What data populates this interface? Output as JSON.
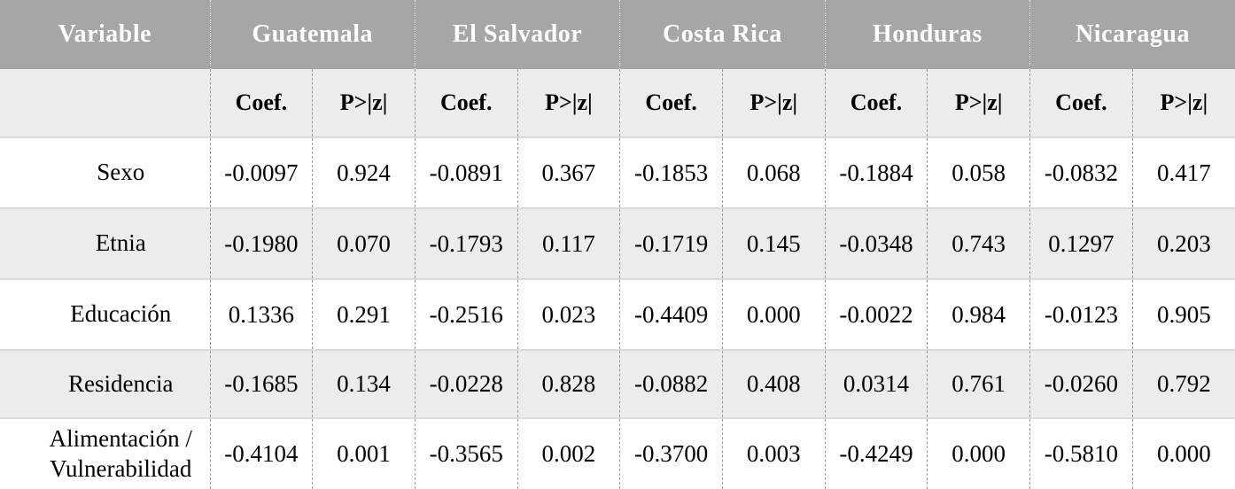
{
  "table": {
    "variable_header": "Variable",
    "countries": [
      "Guatemala",
      "El Salvador",
      "Costa Rica",
      "Honduras",
      "Nicaragua"
    ],
    "sub": {
      "coef": "Coef.",
      "p": "P>|z|"
    },
    "rows": [
      {
        "label": "Sexo",
        "values": [
          "-0.0097",
          "0.924",
          "-0.0891",
          "0.367",
          "-0.1853",
          "0.068",
          "-0.1884",
          "0.058",
          "-0.0832",
          "0.417"
        ]
      },
      {
        "label": "Etnia",
        "values": [
          "-0.1980",
          "0.070",
          "-0.1793",
          "0.117",
          "-0.1719",
          "0.145",
          "-0.0348",
          "0.743",
          "0.1297",
          "0.203"
        ]
      },
      {
        "label": "Educación",
        "values": [
          "0.1336",
          "0.291",
          "-0.2516",
          "0.023",
          "-0.4409",
          "0.000",
          "-0.0022",
          "0.984",
          "-0.0123",
          "0.905"
        ]
      },
      {
        "label": "Residencia",
        "values": [
          "-0.1685",
          "0.134",
          "-0.0228",
          "0.828",
          "-0.0882",
          "0.408",
          "0.0314",
          "0.761",
          "-0.0260",
          "0.792"
        ]
      },
      {
        "label": "Alimentación / Vulnerabilidad",
        "values": [
          "-0.4104",
          "0.001",
          "-0.3565",
          "0.002",
          "-0.3700",
          "0.003",
          "-0.4249",
          "0.000",
          "-0.5810",
          "0.000"
        ]
      }
    ]
  },
  "colors": {
    "header_bg": "#a6a6a6",
    "header_text": "#ffffff",
    "subheader_bg": "#ececec",
    "row_bg": "#ffffff",
    "row_alt_bg": "#ececec",
    "vertical_divider": "#999999",
    "horizontal_divider": "#d9d9d9",
    "body_text": "#000000"
  }
}
